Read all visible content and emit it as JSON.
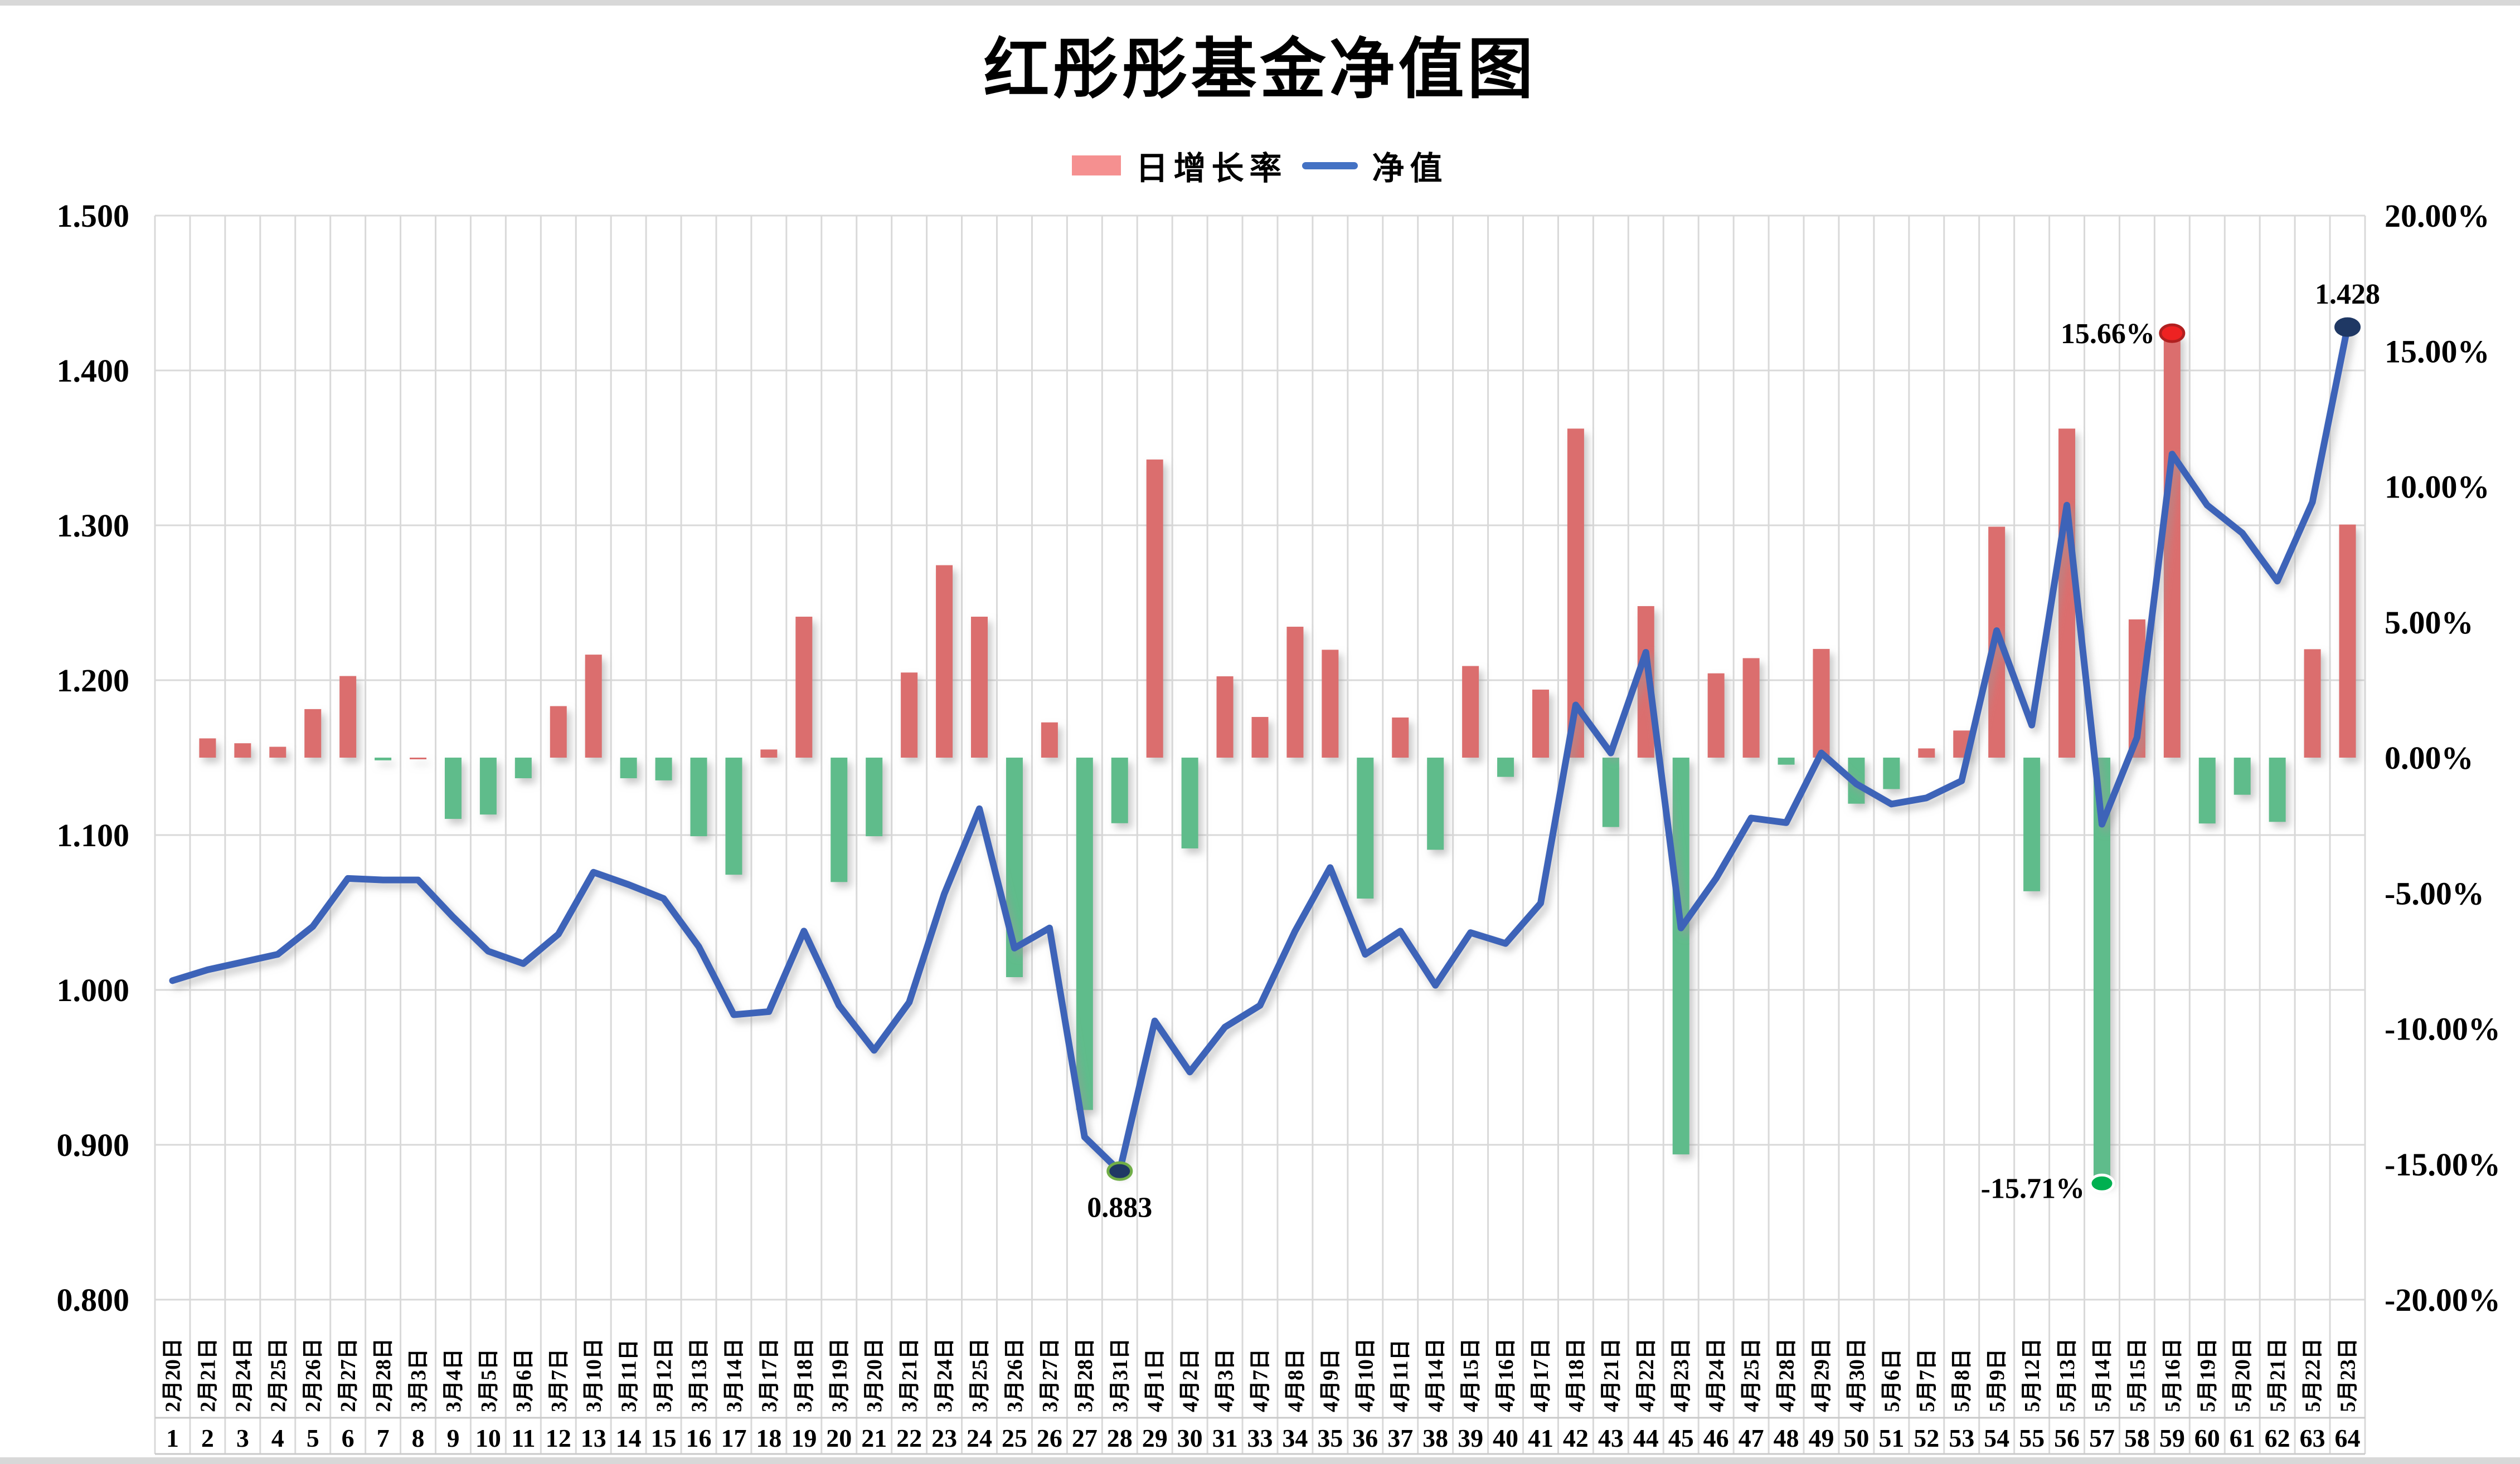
{
  "window": {
    "top_strip_color": "#d8d8d8",
    "bottom_strip_color": "#d8d8d8",
    "background": "#ffffff"
  },
  "chart_data": {
    "type": "bar+line",
    "title": "红彤彤基金净值图",
    "legend": [
      {
        "label": "日增长率",
        "kind": "bar",
        "swatch_color": "#f59090"
      },
      {
        "label": "净值",
        "kind": "line",
        "line_color": "#4472c4"
      }
    ],
    "categories": [
      "2月20日",
      "2月21日",
      "2月24日",
      "2月25日",
      "2月26日",
      "2月27日",
      "2月28日",
      "3月3日",
      "3月4日",
      "3月5日",
      "3月6日",
      "3月7日",
      "3月10日",
      "3月11日",
      "3月12日",
      "3月13日",
      "3月14日",
      "3月17日",
      "3月18日",
      "3月19日",
      "3月20日",
      "3月21日",
      "3月24日",
      "3月25日",
      "3月26日",
      "3月27日",
      "3月28日",
      "3月31日",
      "4月1日",
      "4月2日",
      "4月3日",
      "4月7日",
      "4月8日",
      "4月9日",
      "4月10日",
      "4月11日",
      "4月14日",
      "4月15日",
      "4月16日",
      "4月17日",
      "4月18日",
      "4月21日",
      "4月22日",
      "4月23日",
      "4月24日",
      "4月25日",
      "4月28日",
      "4月29日",
      "4月30日",
      "5月6日",
      "5月7日",
      "5月8日",
      "5月9日",
      "5月12日",
      "5月13日",
      "5月14日",
      "5月15日",
      "5月16日",
      "5月19日",
      "5月20日",
      "5月21日",
      "5月22日",
      "5月23日"
    ],
    "serials": [
      1,
      2,
      3,
      4,
      5,
      6,
      7,
      8,
      9,
      10,
      11,
      12,
      13,
      14,
      15,
      16,
      17,
      18,
      19,
      20,
      21,
      22,
      23,
      24,
      25,
      26,
      27,
      28,
      29,
      30,
      31,
      33,
      34,
      35,
      36,
      37,
      38,
      39,
      40,
      41,
      42,
      43,
      44,
      45,
      46,
      47,
      48,
      49,
      50,
      51,
      52,
      53,
      54,
      55,
      56,
      57,
      58,
      59,
      60,
      61,
      62,
      63,
      64
    ],
    "series": [
      {
        "name": "日增长率",
        "type": "bar",
        "axis": "right",
        "unit": "%",
        "color_positive": "#db6e6e",
        "color_negative": "#5fbc8b",
        "values": [
          null,
          0.71,
          0.53,
          0.4,
          1.79,
          3.01,
          -0.1,
          0.0,
          -2.26,
          -2.1,
          -0.76,
          1.9,
          3.8,
          -0.76,
          -0.84,
          -2.9,
          -4.32,
          0.3,
          5.2,
          -4.59,
          -2.9,
          3.14,
          7.1,
          5.2,
          -8.1,
          1.3,
          -13.0,
          -2.42,
          11.0,
          -3.35,
          3.0,
          1.5,
          4.83,
          3.98,
          -5.2,
          1.48,
          -3.4,
          3.38,
          -0.71,
          2.51,
          12.14,
          -2.56,
          5.59,
          -14.64,
          3.11,
          3.67,
          -0.26,
          4.01,
          -1.7,
          -1.16,
          0.34,
          1.0,
          8.52,
          -4.93,
          12.14,
          -15.71,
          5.1,
          15.66,
          -2.43,
          -1.37,
          -2.37,
          4.0,
          8.6
        ]
      },
      {
        "name": "净值",
        "type": "line",
        "axis": "left",
        "color": "#3e63b8",
        "values": [
          1.006,
          1.013,
          1.018,
          1.023,
          1.041,
          1.072,
          1.071,
          1.071,
          1.047,
          1.025,
          1.017,
          1.036,
          1.076,
          1.068,
          1.059,
          1.028,
          0.984,
          0.986,
          1.038,
          0.99,
          0.961,
          0.992,
          1.062,
          1.117,
          1.027,
          1.04,
          0.905,
          0.883,
          0.98,
          0.947,
          0.976,
          0.99,
          1.038,
          1.079,
          1.023,
          1.038,
          1.003,
          1.037,
          1.03,
          1.056,
          1.184,
          1.153,
          1.218,
          1.04,
          1.072,
          1.111,
          1.108,
          1.153,
          1.133,
          1.12,
          1.124,
          1.135,
          1.232,
          1.171,
          1.313,
          1.107,
          1.163,
          1.346,
          1.313,
          1.295,
          1.264,
          1.315,
          1.428
        ]
      }
    ],
    "left_axis": {
      "min": 0.8,
      "max": 1.5,
      "step": 0.1,
      "labels": [
        "1.500",
        "1.400",
        "1.300",
        "1.200",
        "1.100",
        "1.000",
        "0.900",
        "0.800"
      ]
    },
    "right_axis": {
      "min": -20,
      "max": 20,
      "step": 5,
      "labels": [
        "20.00%",
        "15.00%",
        "10.00%",
        "5.00%",
        "0.00%",
        "-5.00%",
        "-10.00%",
        "-15.00%",
        "-20.00%"
      ]
    },
    "grid": {
      "h_color": "#d9d9d9",
      "v_color": "#d9d9d9",
      "band_line_color": "#c9c9c9"
    },
    "annotations": [
      {
        "text": "0.883",
        "point": 28,
        "series": "line",
        "placement": "below"
      },
      {
        "text": "1.428",
        "point": 63,
        "series": "line",
        "placement": "above"
      },
      {
        "text": "15.66%",
        "point": 58,
        "series": "bar",
        "placement": "left-of-top"
      },
      {
        "text": "-15.71%",
        "point": 56,
        "series": "bar",
        "placement": "left-of-bottom"
      }
    ],
    "markers": [
      {
        "point": 28,
        "series": "line",
        "fill": "#1f3864",
        "stroke": "#70ad47"
      },
      {
        "point": 63,
        "series": "line",
        "fill": "#1f3864",
        "stroke": "#1f3864"
      },
      {
        "point": 58,
        "series": "bar",
        "fill": "#ee2222",
        "stroke": "#b02020"
      },
      {
        "point": 56,
        "series": "bar",
        "fill": "#00b050",
        "stroke": "#ffffff"
      }
    ]
  }
}
